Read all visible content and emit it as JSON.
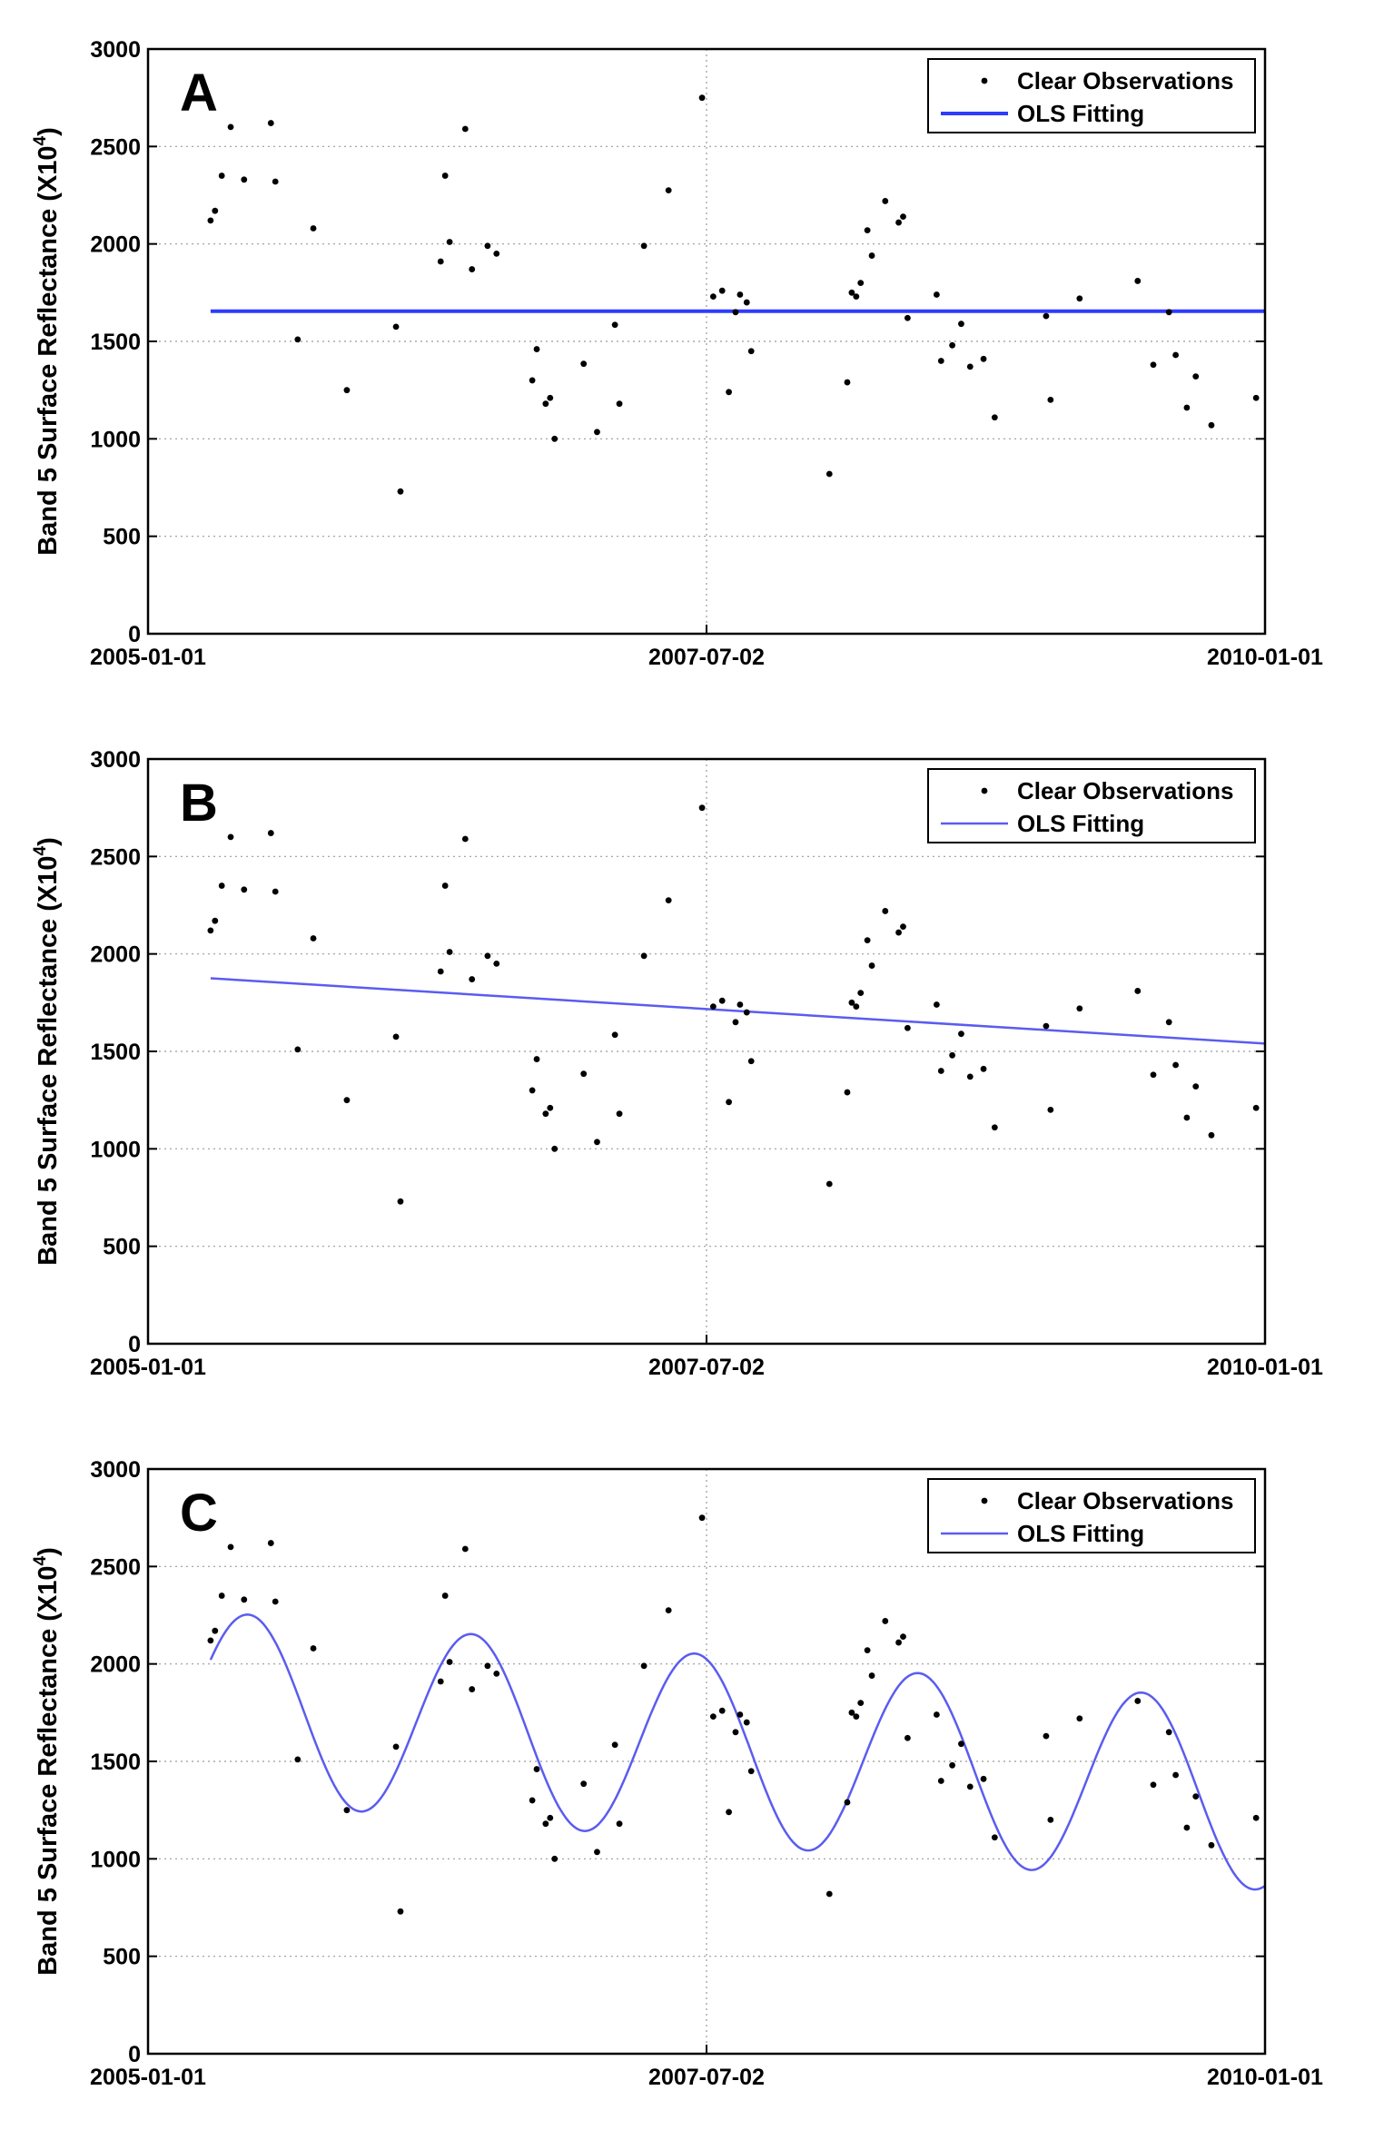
{
  "chart_data": [
    {
      "type": "scatter",
      "panel_label": "A",
      "ylabel": "Band 5 Surface Reflectance (X10",
      "ylabel_exponent": "4",
      "ylabel_close": ")",
      "xlabel": "",
      "ylim": [
        0,
        3000
      ],
      "yticks": [
        0,
        500,
        1000,
        1500,
        2000,
        2500,
        3000
      ],
      "xlim": [
        2005.0,
        2010.0
      ],
      "xticks": [
        {
          "x": 2005.0,
          "label": "2005-01-01"
        },
        {
          "x": 2007.5,
          "label": "2007-07-02"
        },
        {
          "x": 2010.0,
          "label": "2010-01-01"
        }
      ],
      "grid": true,
      "legend": {
        "position": "top-right",
        "entries": [
          "Clear Observations",
          "OLS Fitting"
        ]
      },
      "fit": {
        "model": "constant",
        "mean": 1655,
        "color": "#2e3cff",
        "width": 4
      }
    },
    {
      "type": "scatter",
      "panel_label": "B",
      "ylabel": "Band 5 Surface Reflectance (X10",
      "ylabel_exponent": "4",
      "ylabel_close": ")",
      "xlabel": "",
      "ylim": [
        0,
        3000
      ],
      "yticks": [
        0,
        500,
        1000,
        1500,
        2000,
        2500,
        3000
      ],
      "xlim": [
        2005.0,
        2010.0
      ],
      "xticks": [
        {
          "x": 2005.0,
          "label": "2005-01-01"
        },
        {
          "x": 2007.5,
          "label": "2007-07-02"
        },
        {
          "x": 2010.0,
          "label": "2010-01-01"
        }
      ],
      "grid": true,
      "legend": {
        "position": "top-right",
        "entries": [
          "Clear Observations",
          "OLS Fitting"
        ]
      },
      "fit": {
        "model": "linear",
        "start": [
          2005.28,
          1875
        ],
        "end": [
          2010.0,
          1540
        ],
        "color": "#5a5cf0",
        "width": 2.5
      }
    },
    {
      "type": "scatter",
      "panel_label": "C",
      "ylabel": "Band 5 Surface Reflectance (X10",
      "ylabel_exponent": "4",
      "ylabel_close": ")",
      "xlabel": "",
      "ylim": [
        0,
        3000
      ],
      "yticks": [
        0,
        500,
        1000,
        1500,
        2000,
        2500,
        3000
      ],
      "xlim": [
        2005.0,
        2010.0
      ],
      "xticks": [
        {
          "x": 2005.0,
          "label": "2005-01-01"
        },
        {
          "x": 2007.5,
          "label": "2007-07-02"
        },
        {
          "x": 2010.0,
          "label": "2010-01-01"
        }
      ],
      "grid": true,
      "legend": {
        "position": "top-right",
        "entries": [
          "Clear Observations",
          "OLS Fitting"
        ]
      },
      "fit": {
        "model": "harmonic",
        "x_start": 2005.28,
        "x_end": 2010.0,
        "a0": 1790,
        "trend": -100,
        "amp": 480,
        "peak_first": 2005.45,
        "period": 1.0,
        "color": "#5a5cf0",
        "width": 2.5
      }
    }
  ],
  "observations": [
    [
      2005.28,
      2120
    ],
    [
      2005.3,
      2170
    ],
    [
      2005.33,
      2350
    ],
    [
      2005.37,
      2600
    ],
    [
      2005.43,
      2330
    ],
    [
      2005.55,
      2620
    ],
    [
      2005.57,
      2320
    ],
    [
      2005.67,
      1510
    ],
    [
      2005.74,
      2080
    ],
    [
      2005.89,
      1250
    ],
    [
      2006.11,
      1575
    ],
    [
      2006.13,
      730
    ],
    [
      2006.31,
      1910
    ],
    [
      2006.33,
      2350
    ],
    [
      2006.35,
      2010
    ],
    [
      2006.42,
      2590
    ],
    [
      2006.45,
      1870
    ],
    [
      2006.52,
      1990
    ],
    [
      2006.56,
      1950
    ],
    [
      2006.72,
      1300
    ],
    [
      2006.74,
      1460
    ],
    [
      2006.78,
      1180
    ],
    [
      2006.8,
      1210
    ],
    [
      2006.82,
      1000
    ],
    [
      2006.95,
      1385
    ],
    [
      2007.01,
      1035
    ],
    [
      2007.09,
      1585
    ],
    [
      2007.11,
      1180
    ],
    [
      2007.22,
      1990
    ],
    [
      2007.33,
      2275
    ],
    [
      2007.48,
      2750
    ],
    [
      2007.53,
      1730
    ],
    [
      2007.57,
      1760
    ],
    [
      2007.6,
      1240
    ],
    [
      2007.63,
      1650
    ],
    [
      2007.65,
      1740
    ],
    [
      2007.68,
      1700
    ],
    [
      2007.7,
      1450
    ],
    [
      2008.05,
      820
    ],
    [
      2008.13,
      1290
    ],
    [
      2008.15,
      1750
    ],
    [
      2008.17,
      1730
    ],
    [
      2008.19,
      1800
    ],
    [
      2008.22,
      2070
    ],
    [
      2008.24,
      1940
    ],
    [
      2008.3,
      2220
    ],
    [
      2008.36,
      2110
    ],
    [
      2008.38,
      2140
    ],
    [
      2008.4,
      1620
    ],
    [
      2008.53,
      1740
    ],
    [
      2008.55,
      1400
    ],
    [
      2008.6,
      1480
    ],
    [
      2008.64,
      1590
    ],
    [
      2008.68,
      1370
    ],
    [
      2008.74,
      1410
    ],
    [
      2008.79,
      1110
    ],
    [
      2009.02,
      1630
    ],
    [
      2009.04,
      1200
    ],
    [
      2009.17,
      1720
    ],
    [
      2009.43,
      1810
    ],
    [
      2009.5,
      1380
    ],
    [
      2009.57,
      1650
    ],
    [
      2009.6,
      1430
    ],
    [
      2009.65,
      1160
    ],
    [
      2009.69,
      1320
    ],
    [
      2009.76,
      1070
    ],
    [
      2009.96,
      1210
    ]
  ]
}
